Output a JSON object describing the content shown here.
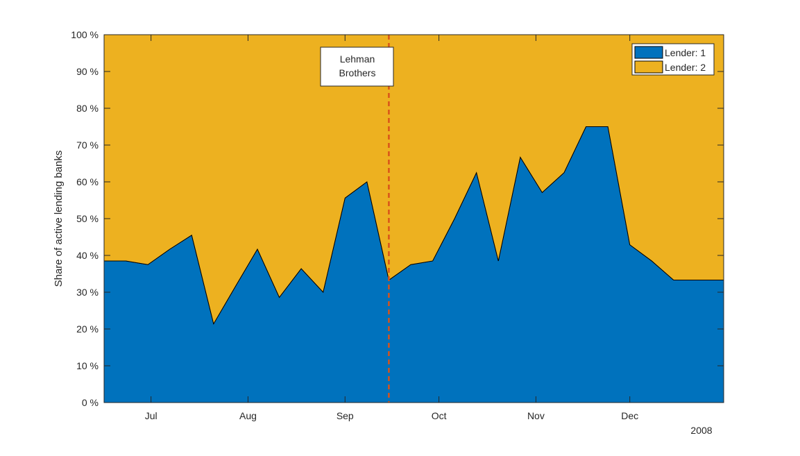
{
  "chart_data": {
    "type": "area",
    "stacked": true,
    "title": "",
    "xlabel": "",
    "ylabel": "Share of active lending banks",
    "x_range": [
      "2008-06-16",
      "2008-12-31"
    ],
    "x_ticks": [
      {
        "date": "2008-07-01",
        "label": "Jul"
      },
      {
        "date": "2008-08-01",
        "label": "Aug"
      },
      {
        "date": "2008-09-01",
        "label": "Sep"
      },
      {
        "date": "2008-10-01",
        "label": "Oct"
      },
      {
        "date": "2008-11-01",
        "label": "Nov"
      },
      {
        "date": "2008-12-01",
        "label": "Dec"
      }
    ],
    "year_label": "2008",
    "ylim": [
      0,
      100
    ],
    "y_ticks": [
      {
        "value": 0,
        "label": "0 %"
      },
      {
        "value": 10,
        "label": "10 %"
      },
      {
        "value": 20,
        "label": "20 %"
      },
      {
        "value": 30,
        "label": "30 %"
      },
      {
        "value": 40,
        "label": "40 %"
      },
      {
        "value": 50,
        "label": "50 %"
      },
      {
        "value": 60,
        "label": "60 %"
      },
      {
        "value": 70,
        "label": "70 %"
      },
      {
        "value": 80,
        "label": "80 %"
      },
      {
        "value": 90,
        "label": "90 %"
      },
      {
        "value": 100,
        "label": "100 %"
      }
    ],
    "grid": false,
    "legend_position": "top-right",
    "x": [
      "2008-06-16",
      "2008-06-23",
      "2008-06-30",
      "2008-07-07",
      "2008-07-14",
      "2008-07-21",
      "2008-07-28",
      "2008-08-04",
      "2008-08-11",
      "2008-08-18",
      "2008-08-25",
      "2008-09-01",
      "2008-09-08",
      "2008-09-15",
      "2008-09-22",
      "2008-09-29",
      "2008-10-06",
      "2008-10-13",
      "2008-10-20",
      "2008-10-27",
      "2008-11-03",
      "2008-11-10",
      "2008-11-17",
      "2008-11-24",
      "2008-12-01",
      "2008-12-08",
      "2008-12-15"
    ],
    "series": [
      {
        "name": "Lender: 1",
        "color": "#0072BD",
        "values": [
          38.5,
          38.5,
          37.5,
          41.7,
          45.5,
          21.4,
          31.6,
          41.7,
          28.6,
          36.4,
          30.0,
          55.6,
          60.0,
          33.3,
          37.5,
          38.5,
          50.0,
          62.5,
          38.5,
          66.7,
          57.1,
          62.5,
          75.0,
          75.0,
          42.9,
          38.5,
          33.3
        ]
      },
      {
        "name": "Lender: 2",
        "color": "#EDB120",
        "values": [
          61.5,
          61.5,
          62.5,
          58.3,
          54.5,
          78.6,
          68.4,
          58.3,
          71.4,
          63.6,
          70.0,
          44.4,
          40.0,
          66.7,
          62.5,
          61.5,
          50.0,
          37.5,
          61.5,
          33.3,
          42.9,
          37.5,
          25.0,
          25.0,
          57.1,
          61.5,
          66.7
        ]
      }
    ],
    "event_line": {
      "date": "2008-09-15",
      "color": "#D95319"
    },
    "annotation": {
      "lines": [
        "Lehman",
        "Brothers"
      ]
    }
  }
}
